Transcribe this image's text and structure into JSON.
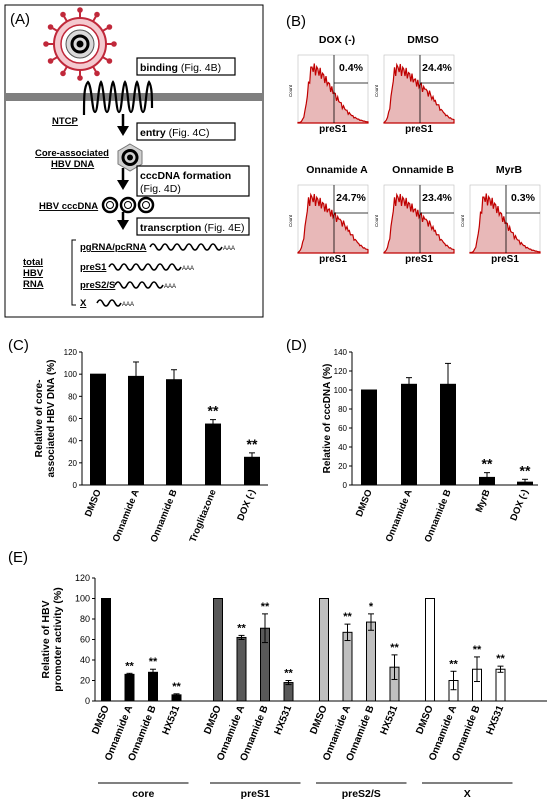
{
  "panelA": {
    "label": "(A)",
    "steps": {
      "binding": "binding",
      "binding_ref": " (Fig. 4B)",
      "entry": "entry",
      "entry_ref": " (Fig. 4C)",
      "cccdna": "cccDNA formation",
      "cccdna_ref": "(Fig. 4D)",
      "transcription": "transcrption",
      "transcription_ref": " (Fig. 4E)"
    },
    "labels": {
      "ntcp": "NTCP",
      "core_assoc_1": "Core-associated",
      "core_assoc_2": "HBV DNA",
      "hbv_cccdna": "HBV cccDNA",
      "total_1": "total",
      "total_2": "HBV",
      "total_3": "RNA"
    },
    "rnas": [
      {
        "name": "pgRNA/pcRNA",
        "tail": "AAA"
      },
      {
        "name": "preS1",
        "tail": "AAA"
      },
      {
        "name": "preS2/S",
        "tail": "AAA"
      },
      {
        "name": "X",
        "tail": "AAA"
      }
    ]
  },
  "panelB": {
    "label": "(B)",
    "y_axis": "Count",
    "x_axis": "preS1",
    "plots": [
      {
        "title": "DOX (-)",
        "percent": "0.4%",
        "positive_fraction": 0.004
      },
      {
        "title": "DMSO",
        "percent": "24.4%",
        "positive_fraction": 0.244
      },
      {
        "title": "Onnamide A",
        "percent": "24.7%",
        "positive_fraction": 0.247
      },
      {
        "title": "Onnamide B",
        "percent": "23.4%",
        "positive_fraction": 0.234
      },
      {
        "title": "MyrB",
        "percent": "0.3%",
        "positive_fraction": 0.003
      }
    ]
  },
  "chart_data": [
    {
      "id": "C",
      "type": "bar",
      "panel_label": "(C)",
      "ylabel_lines": [
        "Relative of core-",
        "associated HBV DNA (%)"
      ],
      "ylim": [
        0,
        120
      ],
      "yticks": [
        0,
        20,
        40,
        60,
        80,
        100,
        120
      ],
      "categories": [
        "DMSO",
        "Onnamide A",
        "Onnamide B",
        "Troglitazone",
        "DOX (-)"
      ],
      "values": [
        100,
        98,
        95,
        55,
        25
      ],
      "errors": [
        0,
        13,
        9,
        4,
        4
      ],
      "significance": [
        "",
        "",
        "",
        "**",
        "**"
      ],
      "color": "#000000"
    },
    {
      "id": "D",
      "type": "bar",
      "panel_label": "(D)",
      "ylabel_lines": [
        "Relative of cccDNA (%)"
      ],
      "ylim": [
        0,
        140
      ],
      "yticks": [
        0,
        20,
        40,
        60,
        80,
        100,
        120,
        140
      ],
      "categories": [
        "DMSO",
        "Onnamide A",
        "Onnamide B",
        "MyrB",
        "DOX (-)"
      ],
      "values": [
        100,
        106,
        106,
        8,
        3
      ],
      "errors": [
        0,
        7,
        22,
        5,
        3
      ],
      "significance": [
        "",
        "",
        "",
        "**",
        "**"
      ],
      "color": "#000000"
    },
    {
      "id": "E",
      "type": "bar",
      "panel_label": "(E)",
      "ylabel_lines": [
        "Relative of HBV",
        "promoter activity (%)"
      ],
      "ylim": [
        0,
        120
      ],
      "yticks": [
        0,
        20,
        40,
        60,
        80,
        100,
        120
      ],
      "groups": [
        {
          "name": "core",
          "color": "#000000",
          "categories": [
            "DMSO",
            "Onnamide A",
            "Onnamide B",
            "HX531"
          ],
          "values": [
            100,
            26,
            28,
            6
          ],
          "errors": [
            0,
            1,
            3,
            1
          ],
          "significance": [
            "",
            "**",
            "**",
            "**"
          ]
        },
        {
          "name": "preS1",
          "color": "#595959",
          "categories": [
            "DMSO",
            "Onnamide A",
            "Onnamide B",
            "HX531"
          ],
          "values": [
            100,
            62,
            71,
            18
          ],
          "errors": [
            0,
            2,
            14,
            2
          ],
          "significance": [
            "",
            "**",
            "**",
            "**"
          ]
        },
        {
          "name": "preS2/S",
          "color": "#bfbfbf",
          "categories": [
            "DMSO",
            "Onnamide A",
            "Onnamide B",
            "HX531"
          ],
          "values": [
            100,
            67,
            77,
            33
          ],
          "errors": [
            0,
            8,
            8,
            12
          ],
          "significance": [
            "",
            "**",
            "*",
            "**"
          ]
        },
        {
          "name": "X",
          "color": "#ffffff",
          "categories": [
            "DMSO",
            "Onnamide A",
            "Onnamide B",
            "HX531"
          ],
          "values": [
            100,
            20,
            31,
            31
          ],
          "errors": [
            0,
            9,
            12,
            3
          ],
          "significance": [
            "",
            "**",
            "**",
            "**"
          ]
        }
      ]
    }
  ]
}
